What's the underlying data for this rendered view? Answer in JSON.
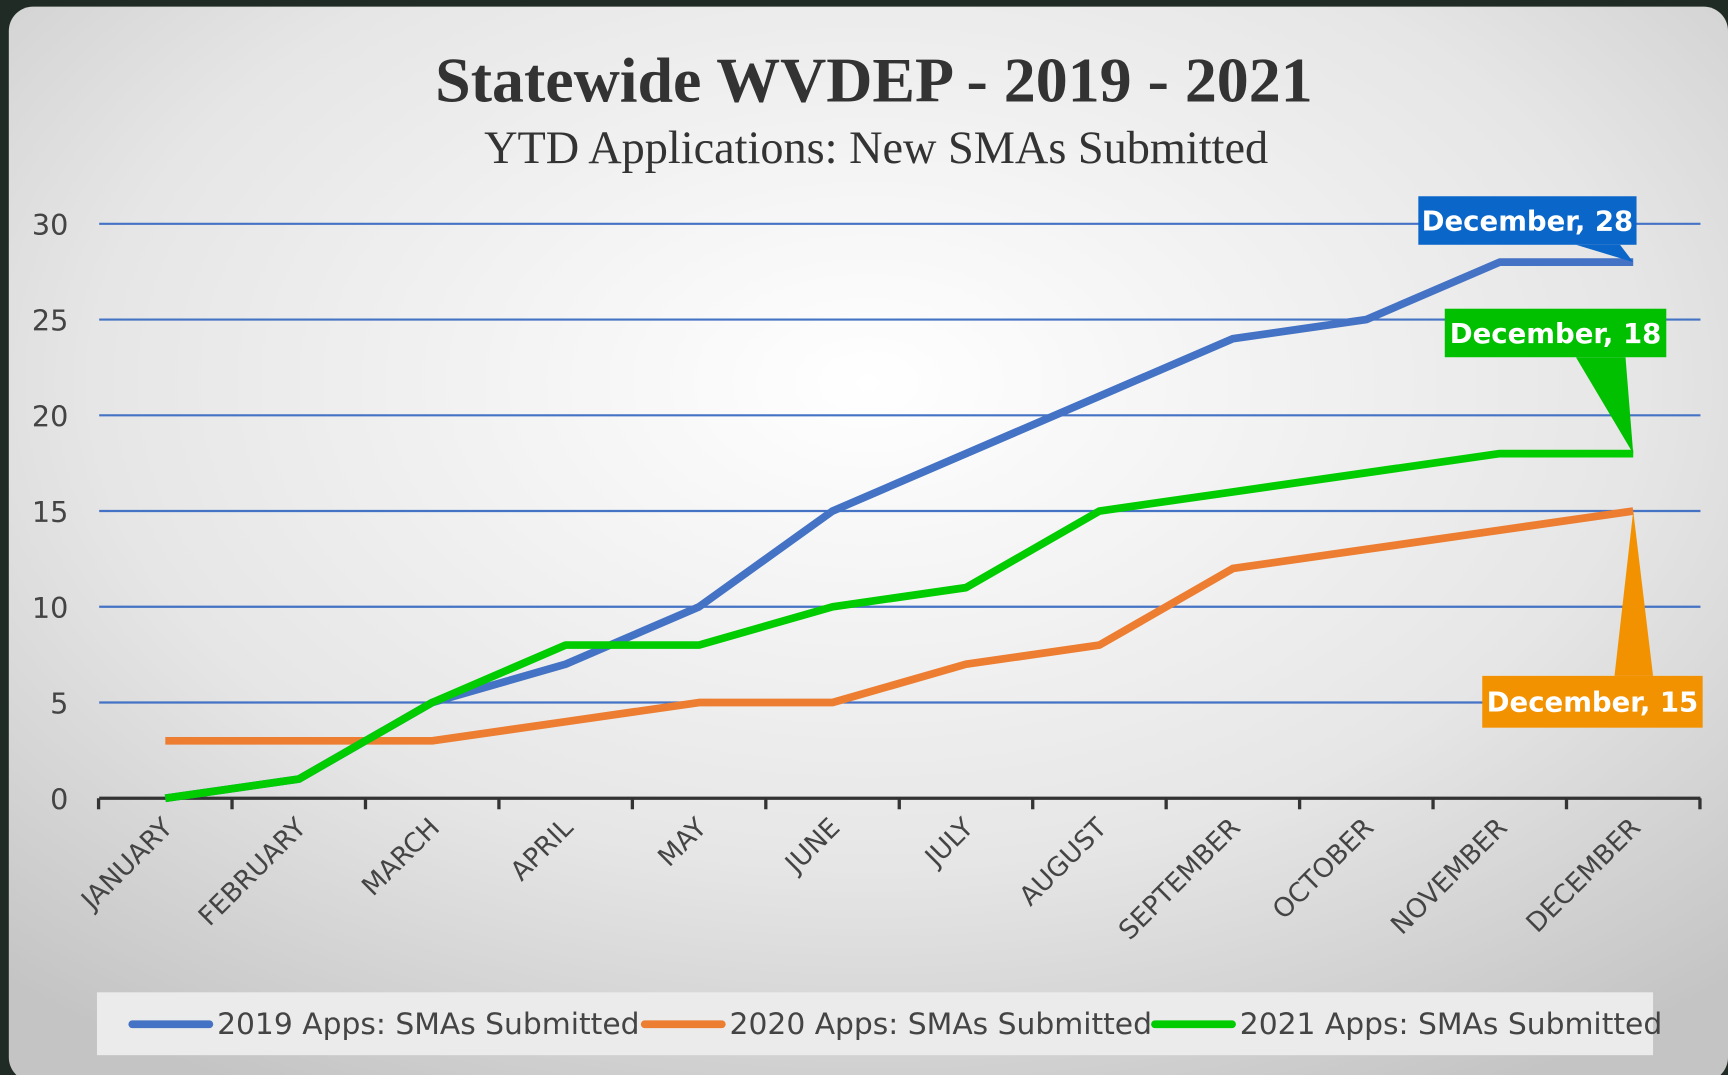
{
  "chart_data": {
    "type": "line",
    "title": "Statewide WVDEP - 2019 - 2021",
    "subtitle": "YTD Applications: New SMAs Submitted",
    "categories": [
      "JANUARY",
      "FEBRUARY",
      "MARCH",
      "APRIL",
      "MAY",
      "JUNE",
      "JULY",
      "AUGUST",
      "SEPTEMBER",
      "OCTOBER",
      "NOVEMBER",
      "DECEMBER"
    ],
    "series": [
      {
        "name": "2019 Apps: SMAs Submitted",
        "color": "#4472c4",
        "values": [
          0,
          1,
          5,
          7,
          10,
          15,
          18,
          21,
          24,
          25,
          28,
          28
        ],
        "value_labels": [
          null,
          null,
          null,
          null,
          null,
          null,
          null,
          null,
          null,
          null,
          null,
          "December, 28"
        ]
      },
      {
        "name": "2020 Apps: SMAs Submitted",
        "color": "#ed7d31",
        "values": [
          3,
          3,
          3,
          4,
          5,
          5,
          7,
          8,
          12,
          13,
          14,
          15
        ],
        "value_labels": [
          null,
          null,
          null,
          null,
          null,
          null,
          null,
          null,
          null,
          null,
          null,
          "December, 15"
        ]
      },
      {
        "name": "2021 Apps: SMAs Submitted",
        "color": "#00cc00",
        "values": [
          0,
          1,
          5,
          8,
          8,
          10,
          11,
          15,
          16,
          17,
          18,
          18
        ],
        "value_labels": [
          null,
          null,
          null,
          null,
          null,
          null,
          null,
          null,
          null,
          null,
          null,
          "December, 18"
        ]
      }
    ],
    "ylim": [
      0,
      30
    ],
    "yticks": [
      0,
      5,
      10,
      15,
      20,
      25,
      30
    ],
    "grid": true,
    "legend": "bottom"
  }
}
